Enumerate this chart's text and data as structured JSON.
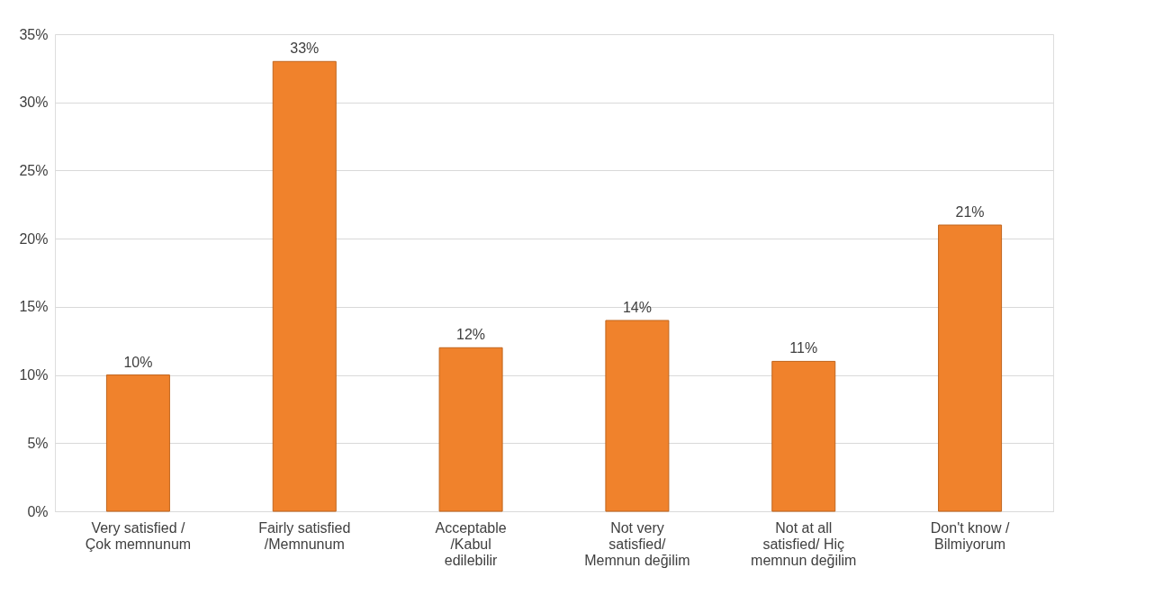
{
  "chart_data": {
    "type": "bar",
    "categories": [
      "Very satisfied / Çok memnunum",
      "Fairly satisfied /Memnunum",
      "Acceptable /Kabul edilebilir",
      "Not very satisfied/ Memnun değilim",
      "Not at all satisfied/ Hiç memnun değilim",
      "Don't know / Bilmiyorum"
    ],
    "values": [
      10,
      33,
      12,
      14,
      11,
      21
    ],
    "value_labels": [
      "10%",
      "33%",
      "12%",
      "14%",
      "11%",
      "21%"
    ],
    "color": "#f0822c",
    "ylim": [
      0,
      35
    ],
    "yticks": [
      {
        "value": 0,
        "label": "0%"
      },
      {
        "value": 5,
        "label": "5%"
      },
      {
        "value": 10,
        "label": "10%"
      },
      {
        "value": 15,
        "label": "15%"
      },
      {
        "value": 20,
        "label": "20%"
      },
      {
        "value": 25,
        "label": "25%"
      },
      {
        "value": 30,
        "label": "30%"
      },
      {
        "value": 35,
        "label": "35%"
      }
    ],
    "grid": "y"
  }
}
